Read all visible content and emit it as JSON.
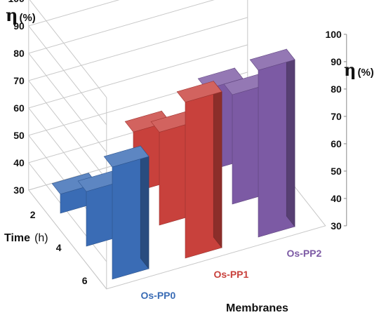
{
  "chart_data": {
    "type": "bar",
    "style": "3d-grouped",
    "xlabel": "Membranes",
    "ylabel": "Time (h)",
    "zlabel": "η(%)",
    "eta_symbol": "η",
    "pct_unit": "(%)",
    "time_title": "Time",
    "time_unit": "(h)",
    "categories": [
      "Os-PP0",
      "Os-PP1",
      "Os-PP2"
    ],
    "category_colors": [
      "#3a6cb5",
      "#c8413c",
      "#7c5aa4"
    ],
    "time_labels": [
      "6",
      "4",
      "2"
    ],
    "series": [
      {
        "name": "6",
        "values": [
          71,
          87,
          91
        ]
      },
      {
        "name": "4",
        "values": [
          50,
          64,
          70
        ]
      },
      {
        "name": "2",
        "values": [
          37,
          52,
          60
        ]
      }
    ],
    "zlim": [
      30,
      100
    ],
    "z_ticks": [
      "30",
      "40",
      "50",
      "60",
      "70",
      "80",
      "90",
      "100"
    ],
    "grid": true
  }
}
